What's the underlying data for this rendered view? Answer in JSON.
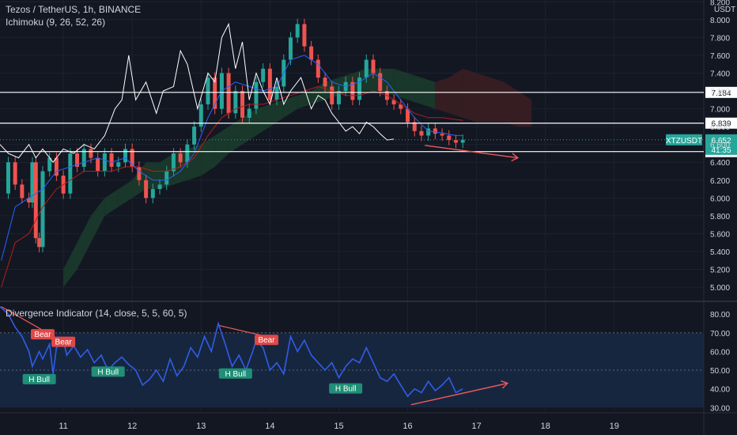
{
  "header": {
    "symbol_title": "Tezos / TetherUS, 1h, BINANCE",
    "ichimoku_label": "Ichimoku (9, 26, 52, 26)",
    "divergence_label": "Divergence Indicator (14, close, 5, 5, 60, 5)",
    "currency": "USDT"
  },
  "colors": {
    "background": "#131722",
    "grid": "#1e2230",
    "axis_text": "#d1d4dc",
    "bull": "#26a69a",
    "bear": "#ef5350",
    "conversion_line": "#2962ff",
    "base_line": "#b71c1c",
    "lagging_span": "#ffffff",
    "cloud_green": "#1b3b2b",
    "cloud_red": "#3b1e22",
    "rsi_line": "#2f5de8",
    "rsi_band": "#17263f",
    "arrow": "#f05a5a"
  },
  "chart_data": [
    {
      "type": "candlestick",
      "title": "Tezos / TetherUS, 1h, BINANCE",
      "y_ticks": [
        "8.200",
        "8.000",
        "7.800",
        "7.600",
        "7.400",
        "7.200",
        "7.000",
        "6.800",
        "6.600",
        "6.400",
        "6.200",
        "6.000",
        "5.800",
        "5.600",
        "5.400",
        "5.200",
        "5.000"
      ],
      "y_tick_values": [
        8.2,
        8.0,
        7.8,
        7.6,
        7.4,
        7.2,
        7.0,
        6.8,
        6.6,
        6.4,
        6.2,
        6.0,
        5.8,
        5.6,
        5.4,
        5.2,
        5.0
      ],
      "ylim": [
        4.85,
        8.22
      ],
      "x_ticks": [
        "11",
        "12",
        "13",
        "14",
        "15",
        "16",
        "17",
        "18",
        "19"
      ],
      "x_tick_values": [
        11,
        12,
        13,
        14,
        15,
        16,
        17,
        18,
        19
      ],
      "xlim": [
        10.08,
        20.3
      ],
      "horizontal_lines": [
        {
          "label": "7.184",
          "value": 7.184
        },
        {
          "label": "6.839",
          "value": 6.839
        },
        {
          "label": "6.520",
          "value": 6.52
        }
      ],
      "current_price": {
        "symbol": "XTZUSDT",
        "price": "6.652",
        "countdown": "41:35",
        "value": 6.652
      },
      "close_series": [
        [
          10.1,
          6.05
        ],
        [
          10.2,
          6.4
        ],
        [
          10.3,
          6.15
        ],
        [
          10.4,
          6.0
        ],
        [
          10.5,
          5.95
        ],
        [
          10.55,
          6.4
        ],
        [
          10.6,
          5.55
        ],
        [
          10.65,
          5.45
        ],
        [
          10.7,
          6.3
        ],
        [
          10.8,
          6.45
        ],
        [
          10.9,
          6.25
        ],
        [
          11.0,
          6.05
        ],
        [
          11.1,
          6.5
        ],
        [
          11.2,
          6.35
        ],
        [
          11.3,
          6.55
        ],
        [
          11.4,
          6.45
        ],
        [
          11.5,
          6.3
        ],
        [
          11.6,
          6.5
        ],
        [
          11.7,
          6.35
        ],
        [
          11.8,
          6.4
        ],
        [
          11.9,
          6.55
        ],
        [
          12.0,
          6.35
        ],
        [
          12.1,
          6.2
        ],
        [
          12.2,
          6.0
        ],
        [
          12.3,
          6.1
        ],
        [
          12.4,
          6.15
        ],
        [
          12.5,
          6.3
        ],
        [
          12.6,
          6.5
        ],
        [
          12.7,
          6.4
        ],
        [
          12.8,
          6.6
        ],
        [
          12.9,
          6.8
        ],
        [
          13.0,
          7.05
        ],
        [
          13.1,
          7.35
        ],
        [
          13.2,
          7.0
        ],
        [
          13.3,
          7.4
        ],
        [
          13.4,
          6.95
        ],
        [
          13.5,
          7.2
        ],
        [
          13.6,
          6.9
        ],
        [
          13.7,
          7.0
        ],
        [
          13.8,
          7.3
        ],
        [
          13.9,
          7.45
        ],
        [
          14.0,
          7.1
        ],
        [
          14.1,
          7.25
        ],
        [
          14.2,
          7.55
        ],
        [
          14.3,
          7.8
        ],
        [
          14.4,
          7.95
        ],
        [
          14.5,
          7.7
        ],
        [
          14.6,
          7.55
        ],
        [
          14.7,
          7.35
        ],
        [
          14.8,
          7.25
        ],
        [
          14.9,
          7.05
        ],
        [
          15.0,
          7.2
        ],
        [
          15.1,
          7.3
        ],
        [
          15.2,
          7.1
        ],
        [
          15.3,
          7.35
        ],
        [
          15.4,
          7.55
        ],
        [
          15.5,
          7.4
        ],
        [
          15.6,
          7.2
        ],
        [
          15.7,
          7.1
        ],
        [
          15.8,
          7.05
        ],
        [
          15.9,
          7.0
        ],
        [
          16.0,
          6.85
        ],
        [
          16.1,
          6.75
        ],
        [
          16.2,
          6.7
        ],
        [
          16.3,
          6.78
        ],
        [
          16.4,
          6.72
        ],
        [
          16.5,
          6.7
        ],
        [
          16.6,
          6.65
        ],
        [
          16.7,
          6.62
        ],
        [
          16.8,
          6.652
        ]
      ],
      "conversion_line": [
        [
          10.1,
          5.3
        ],
        [
          10.3,
          5.9
        ],
        [
          10.5,
          6.0
        ],
        [
          10.7,
          6.1
        ],
        [
          10.9,
          6.3
        ],
        [
          11.1,
          6.35
        ],
        [
          11.3,
          6.4
        ],
        [
          11.5,
          6.45
        ],
        [
          11.7,
          6.4
        ],
        [
          11.9,
          6.45
        ],
        [
          12.1,
          6.3
        ],
        [
          12.3,
          6.2
        ],
        [
          12.5,
          6.2
        ],
        [
          12.7,
          6.3
        ],
        [
          12.9,
          6.5
        ],
        [
          13.1,
          6.9
        ],
        [
          13.3,
          7.2
        ],
        [
          13.5,
          7.3
        ],
        [
          13.7,
          7.25
        ],
        [
          13.9,
          7.2
        ],
        [
          14.1,
          7.25
        ],
        [
          14.3,
          7.55
        ],
        [
          14.5,
          7.6
        ],
        [
          14.7,
          7.5
        ],
        [
          14.9,
          7.3
        ],
        [
          15.1,
          7.25
        ],
        [
          15.3,
          7.3
        ],
        [
          15.5,
          7.4
        ],
        [
          15.7,
          7.3
        ],
        [
          15.9,
          7.1
        ],
        [
          16.1,
          6.9
        ],
        [
          16.3,
          6.75
        ],
        [
          16.5,
          6.73
        ],
        [
          16.7,
          6.7
        ],
        [
          16.8,
          6.7
        ]
      ],
      "base_line": [
        [
          10.1,
          5.0
        ],
        [
          10.3,
          5.5
        ],
        [
          10.5,
          5.6
        ],
        [
          10.7,
          5.9
        ],
        [
          10.9,
          6.1
        ],
        [
          11.1,
          6.2
        ],
        [
          11.3,
          6.3
        ],
        [
          11.5,
          6.3
        ],
        [
          11.7,
          6.3
        ],
        [
          11.9,
          6.35
        ],
        [
          12.1,
          6.35
        ],
        [
          12.3,
          6.3
        ],
        [
          12.5,
          6.3
        ],
        [
          12.7,
          6.35
        ],
        [
          12.9,
          6.45
        ],
        [
          13.1,
          6.7
        ],
        [
          13.3,
          6.9
        ],
        [
          13.5,
          7.0
        ],
        [
          13.7,
          7.05
        ],
        [
          13.9,
          7.05
        ],
        [
          14.1,
          7.1
        ],
        [
          14.3,
          7.15
        ],
        [
          14.5,
          7.2
        ],
        [
          14.7,
          7.25
        ],
        [
          14.9,
          7.2
        ],
        [
          15.1,
          7.15
        ],
        [
          15.3,
          7.15
        ],
        [
          15.5,
          7.2
        ],
        [
          15.7,
          7.15
        ],
        [
          15.9,
          7.05
        ],
        [
          16.1,
          6.95
        ],
        [
          16.3,
          6.9
        ],
        [
          16.5,
          6.9
        ],
        [
          16.7,
          6.88
        ],
        [
          16.8,
          6.87
        ]
      ],
      "lagging_span": [
        [
          10.08,
          6.6
        ],
        [
          10.2,
          6.5
        ],
        [
          10.35,
          6.45
        ],
        [
          10.5,
          6.6
        ],
        [
          10.6,
          6.45
        ],
        [
          10.7,
          6.55
        ],
        [
          10.85,
          6.4
        ],
        [
          11.0,
          6.55
        ],
        [
          11.15,
          6.5
        ],
        [
          11.3,
          6.6
        ],
        [
          11.45,
          6.55
        ],
        [
          11.6,
          6.7
        ],
        [
          11.75,
          7.0
        ],
        [
          11.85,
          7.1
        ],
        [
          11.95,
          7.6
        ],
        [
          12.05,
          7.1
        ],
        [
          12.2,
          7.3
        ],
        [
          12.35,
          6.95
        ],
        [
          12.45,
          7.2
        ],
        [
          12.6,
          7.25
        ],
        [
          12.7,
          7.65
        ],
        [
          12.8,
          7.5
        ],
        [
          12.95,
          7.0
        ],
        [
          13.1,
          7.4
        ],
        [
          13.2,
          7.3
        ],
        [
          13.3,
          7.8
        ],
        [
          13.4,
          7.95
        ],
        [
          13.5,
          7.45
        ],
        [
          13.6,
          7.75
        ],
        [
          13.7,
          7.1
        ],
        [
          13.8,
          7.4
        ],
        [
          13.9,
          7.2
        ],
        [
          14.0,
          7.05
        ],
        [
          14.1,
          7.35
        ],
        [
          14.2,
          7.05
        ],
        [
          14.3,
          7.2
        ],
        [
          14.45,
          7.35
        ],
        [
          14.6,
          7.0
        ],
        [
          14.7,
          7.15
        ],
        [
          14.8,
          7.1
        ],
        [
          14.9,
          6.95
        ],
        [
          15.0,
          6.85
        ],
        [
          15.1,
          6.75
        ],
        [
          15.2,
          6.8
        ],
        [
          15.3,
          6.72
        ],
        [
          15.4,
          6.85
        ],
        [
          15.5,
          6.8
        ],
        [
          15.6,
          6.72
        ],
        [
          15.7,
          6.65
        ],
        [
          15.8,
          6.66
        ]
      ],
      "cloud": [
        [
          11.0,
          5.0,
          5.2
        ],
        [
          11.2,
          5.2,
          5.5
        ],
        [
          11.4,
          5.5,
          5.8
        ],
        [
          11.6,
          5.8,
          6.0
        ],
        [
          11.8,
          5.9,
          6.1
        ],
        [
          12.0,
          6.0,
          6.2
        ],
        [
          12.2,
          6.1,
          6.4
        ],
        [
          12.4,
          6.1,
          6.4
        ],
        [
          12.6,
          6.15,
          6.5
        ],
        [
          12.8,
          6.2,
          6.55
        ],
        [
          13.0,
          6.25,
          6.6
        ],
        [
          13.2,
          6.35,
          6.7
        ],
        [
          13.4,
          6.5,
          6.8
        ],
        [
          13.6,
          6.6,
          6.9
        ],
        [
          13.8,
          6.7,
          7.0
        ],
        [
          14.0,
          6.8,
          7.05
        ],
        [
          14.2,
          6.9,
          7.1
        ],
        [
          14.4,
          7.0,
          7.15
        ],
        [
          14.6,
          7.05,
          7.2
        ],
        [
          14.8,
          7.1,
          7.3
        ],
        [
          15.0,
          7.15,
          7.35
        ],
        [
          15.2,
          7.2,
          7.4
        ],
        [
          15.4,
          7.2,
          7.45
        ],
        [
          15.6,
          7.2,
          7.45
        ],
        [
          15.8,
          7.15,
          7.45
        ],
        [
          16.0,
          7.1,
          7.4
        ],
        [
          16.2,
          7.05,
          7.35
        ],
        [
          16.4,
          7.0,
          7.3
        ],
        [
          16.6,
          6.95,
          7.35
        ],
        [
          16.8,
          6.9,
          7.45
        ],
        [
          17.0,
          6.85,
          7.4
        ],
        [
          17.2,
          6.85,
          7.35
        ],
        [
          17.4,
          6.85,
          7.3
        ],
        [
          17.6,
          6.8,
          7.2
        ],
        [
          17.8,
          6.8,
          7.1
        ]
      ],
      "divergence_arrow": {
        "from": [
          16.25,
          6.59
        ],
        "to": [
          17.6,
          6.45
        ]
      }
    },
    {
      "type": "line",
      "title": "Divergence Indicator (14, close, 5, 5, 60, 5)",
      "y_ticks": [
        "80.00",
        "70.00",
        "60.00",
        "50.00",
        "40.00",
        "30.00"
      ],
      "y_tick_values": [
        80,
        70,
        60,
        50,
        40,
        30
      ],
      "ylim": [
        28,
        86
      ],
      "band": [
        30,
        70
      ],
      "xlim": [
        10.08,
        20.3
      ],
      "values": [
        [
          10.08,
          84
        ],
        [
          10.2,
          80
        ],
        [
          10.3,
          73
        ],
        [
          10.4,
          68
        ],
        [
          10.5,
          60
        ],
        [
          10.55,
          52
        ],
        [
          10.65,
          60
        ],
        [
          10.7,
          56
        ],
        [
          10.8,
          64
        ],
        [
          10.85,
          48
        ],
        [
          10.9,
          62
        ],
        [
          11.0,
          66
        ],
        [
          11.05,
          58
        ],
        [
          11.15,
          63
        ],
        [
          11.25,
          57
        ],
        [
          11.35,
          61
        ],
        [
          11.45,
          54
        ],
        [
          11.55,
          58
        ],
        [
          11.65,
          50
        ],
        [
          11.75,
          54
        ],
        [
          11.85,
          57
        ],
        [
          11.95,
          53
        ],
        [
          12.05,
          50
        ],
        [
          12.15,
          42
        ],
        [
          12.25,
          45
        ],
        [
          12.35,
          50
        ],
        [
          12.45,
          44
        ],
        [
          12.55,
          56
        ],
        [
          12.65,
          47
        ],
        [
          12.75,
          52
        ],
        [
          12.85,
          62
        ],
        [
          12.95,
          57
        ],
        [
          13.05,
          68
        ],
        [
          13.15,
          60
        ],
        [
          13.25,
          75
        ],
        [
          13.35,
          64
        ],
        [
          13.45,
          52
        ],
        [
          13.55,
          58
        ],
        [
          13.65,
          50
        ],
        [
          13.75,
          60
        ],
        [
          13.8,
          66
        ],
        [
          13.9,
          62
        ],
        [
          14.0,
          50
        ],
        [
          14.1,
          54
        ],
        [
          14.2,
          48
        ],
        [
          14.3,
          68
        ],
        [
          14.4,
          60
        ],
        [
          14.5,
          66
        ],
        [
          14.6,
          58
        ],
        [
          14.7,
          54
        ],
        [
          14.8,
          50
        ],
        [
          14.9,
          54
        ],
        [
          15.0,
          46
        ],
        [
          15.1,
          52
        ],
        [
          15.2,
          56
        ],
        [
          15.3,
          54
        ],
        [
          15.4,
          62
        ],
        [
          15.5,
          54
        ],
        [
          15.6,
          46
        ],
        [
          15.7,
          44
        ],
        [
          15.8,
          48
        ],
        [
          15.9,
          42
        ],
        [
          16.0,
          36
        ],
        [
          16.1,
          40
        ],
        [
          16.2,
          38
        ],
        [
          16.3,
          44
        ],
        [
          16.4,
          39
        ],
        [
          16.5,
          42
        ],
        [
          16.6,
          46
        ],
        [
          16.7,
          38
        ],
        [
          16.8,
          40
        ]
      ],
      "labels": [
        {
          "text": "Bear",
          "kind": "bear",
          "x": 10.7,
          "y": 69
        },
        {
          "text": "Bear",
          "kind": "bear",
          "x": 11.0,
          "y": 65
        },
        {
          "text": "Bear",
          "kind": "bear",
          "x": 13.95,
          "y": 66
        },
        {
          "text": "H Bull",
          "kind": "bull",
          "x": 10.65,
          "y": 45
        },
        {
          "text": "H Bull",
          "kind": "bull",
          "x": 11.65,
          "y": 49
        },
        {
          "text": "H Bull",
          "kind": "bull",
          "x": 13.5,
          "y": 48
        },
        {
          "text": "H Bull",
          "kind": "bull",
          "x": 15.1,
          "y": 40
        }
      ],
      "trendlines": [
        {
          "from": [
            10.1,
            84
          ],
          "to": [
            10.72,
            71
          ]
        },
        {
          "from": [
            13.25,
            74
          ],
          "to": [
            13.95,
            68
          ]
        },
        {
          "from": [
            16.05,
            31.5
          ],
          "to": [
            17.45,
            43
          ]
        }
      ]
    }
  ]
}
